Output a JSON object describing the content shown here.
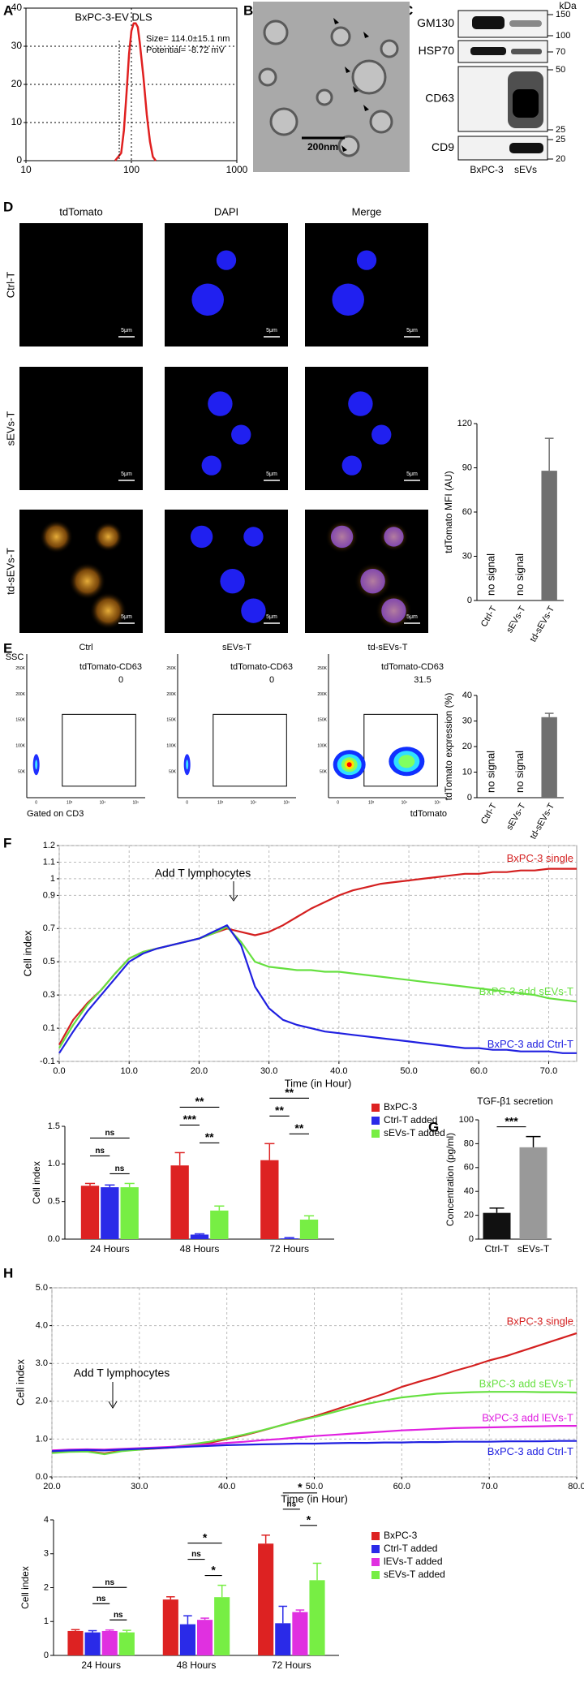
{
  "panel_labels": [
    "A",
    "B",
    "C",
    "D",
    "E",
    "F",
    "G",
    "H"
  ],
  "tem": {
    "scale_bar": "200nm"
  },
  "blot": {
    "unit": "kDa",
    "lanes": [
      "BxPC-3",
      "sEVs"
    ],
    "rows": [
      {
        "label": "GM130",
        "markers": [
          150,
          100
        ]
      },
      {
        "label": "HSP70",
        "markers": [
          70
        ]
      },
      {
        "label": "CD63",
        "markers": [
          50,
          25
        ]
      },
      {
        "label": "CD9",
        "markers": [
          25,
          20
        ]
      }
    ]
  },
  "microscopy": {
    "columns": [
      "tdTomato",
      "DAPI",
      "Merge"
    ],
    "rows": [
      "Ctrl-T",
      "sEVs-T",
      "td-sEVs-T"
    ],
    "scale_bar": "5μm"
  },
  "flow": {
    "y_axis": "SSC",
    "x_axis": "tdTomato",
    "gate_note": "Gated on CD3",
    "gate_name": "tdTomato-CD63",
    "xticks": [
      "0",
      "10³",
      "10⁴",
      "10⁵"
    ],
    "yticks": [
      "50K",
      "100K",
      "150K",
      "200K",
      "250K"
    ],
    "samples": [
      {
        "name": "Ctrl",
        "value": 0
      },
      {
        "name": "sEVs-T",
        "value": 0
      },
      {
        "name": "td-sEVs-T",
        "value": 31.5
      }
    ]
  },
  "chart_data": [
    {
      "type": "line",
      "title": "BxPC-3-EV DLS",
      "annotations": [
        "Size= 114.0±15.1 nm",
        "Potential= -8.72 mV"
      ],
      "x": [
        70,
        80,
        85,
        90,
        95,
        100,
        105,
        110,
        115,
        120,
        130,
        140,
        150,
        160,
        170
      ],
      "series": [
        {
          "color": "#e02020",
          "values": [
            0,
            2,
            8,
            18,
            28,
            34,
            36,
            36,
            35,
            31,
            22,
            12,
            5,
            1,
            0
          ]
        }
      ],
      "xlim": [
        10,
        1000
      ],
      "xticks": [
        10,
        100,
        1000
      ],
      "xscale": "log",
      "ylim": [
        0,
        40
      ],
      "yticks": [
        0,
        10,
        20,
        30,
        40
      ],
      "grid": true
    },
    {
      "type": "bar",
      "ylabel": "tdTomato MFI (AU)",
      "categories": [
        "Ctrl-T",
        "sEVs-T",
        "td-sEVs-T"
      ],
      "values": [
        null,
        null,
        88
      ],
      "errors": [
        null,
        null,
        22
      ],
      "annotations": [
        "no signal",
        "no signal"
      ],
      "color": "#707070",
      "ylim": [
        0,
        120
      ],
      "yticks": [
        0,
        30,
        60,
        90,
        120
      ]
    },
    {
      "type": "bar",
      "ylabel": "tdTomato expression (%)",
      "categories": [
        "Ctrl-T",
        "sEVs-T",
        "td-sEVs-T"
      ],
      "values": [
        null,
        null,
        31.5
      ],
      "errors": [
        null,
        null,
        1.5
      ],
      "annotations": [
        "no signal",
        "no signal"
      ],
      "color": "#707070",
      "ylim": [
        0,
        40
      ],
      "yticks": [
        0,
        10,
        20,
        30,
        40
      ]
    },
    {
      "type": "line",
      "xlabel": "Time (in Hour)",
      "ylabel": "Cell index",
      "annotations": [
        "Add T lymphocytes"
      ],
      "x": [
        0,
        2,
        4,
        6,
        8,
        10,
        12,
        14,
        16,
        18,
        20,
        22,
        24,
        26,
        28,
        30,
        32,
        34,
        36,
        38,
        40,
        42,
        44,
        46,
        48,
        50,
        52,
        54,
        56,
        58,
        60,
        62,
        64,
        66,
        68,
        70,
        72,
        74
      ],
      "series": [
        {
          "name": "BxPC-3 single",
          "color": "#d42020",
          "values": [
            0.0,
            0.15,
            0.25,
            0.33,
            0.43,
            0.52,
            0.56,
            0.58,
            0.6,
            0.62,
            0.64,
            0.67,
            0.7,
            0.68,
            0.66,
            0.68,
            0.72,
            0.77,
            0.82,
            0.86,
            0.9,
            0.93,
            0.95,
            0.97,
            0.98,
            0.99,
            1.0,
            1.01,
            1.02,
            1.03,
            1.03,
            1.04,
            1.04,
            1.05,
            1.05,
            1.06,
            1.06,
            1.06
          ]
        },
        {
          "name": "BxPC-3 add sEVs-T",
          "color": "#66e040",
          "values": [
            -0.02,
            0.12,
            0.24,
            0.33,
            0.43,
            0.52,
            0.56,
            0.58,
            0.6,
            0.62,
            0.64,
            0.67,
            0.71,
            0.62,
            0.5,
            0.47,
            0.46,
            0.45,
            0.45,
            0.44,
            0.44,
            0.43,
            0.42,
            0.41,
            0.4,
            0.39,
            0.38,
            0.37,
            0.36,
            0.35,
            0.34,
            0.33,
            0.32,
            0.31,
            0.3,
            0.28,
            0.27,
            0.26
          ]
        },
        {
          "name": "BxPC-3 add Ctrl-T",
          "color": "#2020e0",
          "values": [
            -0.05,
            0.08,
            0.2,
            0.3,
            0.4,
            0.5,
            0.55,
            0.58,
            0.6,
            0.62,
            0.64,
            0.68,
            0.72,
            0.6,
            0.35,
            0.22,
            0.15,
            0.12,
            0.1,
            0.08,
            0.07,
            0.06,
            0.05,
            0.04,
            0.03,
            0.02,
            0.01,
            0,
            -0.01,
            -0.02,
            -0.02,
            -0.03,
            -0.03,
            -0.04,
            -0.04,
            -0.04,
            -0.05,
            -0.05
          ]
        }
      ],
      "xlim": [
        0,
        74
      ],
      "xticks": [
        {
          "value": 0,
          "label": "0.0"
        },
        {
          "value": 10,
          "label": "10.0"
        },
        {
          "value": 20,
          "label": "20.0"
        },
        {
          "value": 30,
          "label": "30.0"
        },
        {
          "value": 40,
          "label": "40.0"
        },
        {
          "value": 50,
          "label": "50.0"
        },
        {
          "value": 60,
          "label": "60.0"
        },
        {
          "value": 70,
          "label": "70.0"
        }
      ],
      "ylim": [
        -0.1,
        1.2
      ],
      "yticks": [
        -0.1,
        0.1,
        0.3,
        0.5,
        0.7,
        0.9,
        1,
        1.1,
        1.2
      ],
      "grid": true
    },
    {
      "type": "bar",
      "ylabel": "Cell index",
      "categories": [
        "24 Hours",
        "48 Hours",
        "72 Hours"
      ],
      "series": [
        {
          "name": "BxPC-3",
          "color": "#dd2222",
          "values": [
            0.71,
            0.98,
            1.05
          ],
          "errors": [
            0.03,
            0.17,
            0.22
          ]
        },
        {
          "name": "Ctrl-T added",
          "color": "#2a2ae8",
          "values": [
            0.69,
            0.06,
            0.01
          ],
          "errors": [
            0.03,
            0.01,
            0.01
          ]
        },
        {
          "name": "sEVs-T added",
          "color": "#77ee44",
          "values": [
            0.69,
            0.38,
            0.26
          ],
          "errors": [
            0.05,
            0.06,
            0.05
          ]
        }
      ],
      "significance": [
        [
          "ns",
          "ns",
          "ns"
        ],
        [
          "**",
          "***",
          "**"
        ],
        [
          "**",
          "**",
          "**"
        ]
      ],
      "ylim": [
        0,
        1.5
      ],
      "yticks": [
        {
          "value": 0,
          "label": "0.0"
        },
        {
          "value": 0.5,
          "label": "0.5"
        },
        {
          "value": 1,
          "label": "1.0"
        },
        {
          "value": 1.5,
          "label": "1.5"
        }
      ]
    },
    {
      "type": "bar",
      "title": "TGF-β1 secretion",
      "ylabel": "Concentration (pg/ml)",
      "categories": [
        "Ctrl-T",
        "sEVs-T"
      ],
      "values": [
        22,
        77
      ],
      "errors": [
        4,
        9
      ],
      "colors": [
        "#111111",
        "#999999"
      ],
      "significance": [
        [
          "***"
        ]
      ],
      "ylim": [
        0,
        100
      ],
      "yticks": [
        0,
        20,
        40,
        60,
        80,
        100
      ]
    },
    {
      "type": "line",
      "xlabel": "Time (in Hour)",
      "ylabel": "Cell index",
      "annotations": [
        "Add T lymphocytes"
      ],
      "x": [
        20,
        22,
        24,
        26,
        28,
        30,
        32,
        34,
        36,
        38,
        40,
        42,
        44,
        46,
        48,
        50,
        52,
        54,
        56,
        58,
        60,
        62,
        64,
        66,
        68,
        70,
        72,
        74,
        76,
        78,
        80
      ],
      "series": [
        {
          "name": "BxPC-3 single",
          "color": "#d42020",
          "values": [
            0.65,
            0.67,
            0.68,
            0.62,
            0.7,
            0.72,
            0.75,
            0.78,
            0.83,
            0.9,
            1.0,
            1.1,
            1.22,
            1.35,
            1.48,
            1.6,
            1.75,
            1.9,
            2.05,
            2.2,
            2.38,
            2.52,
            2.65,
            2.8,
            2.93,
            3.08,
            3.2,
            3.35,
            3.5,
            3.65,
            3.8
          ]
        },
        {
          "name": "BxPC-3 add sEVs-T",
          "color": "#66e040",
          "values": [
            0.63,
            0.66,
            0.67,
            0.6,
            0.68,
            0.72,
            0.76,
            0.8,
            0.86,
            0.93,
            1.02,
            1.12,
            1.23,
            1.35,
            1.47,
            1.58,
            1.7,
            1.82,
            1.93,
            2.02,
            2.1,
            2.15,
            2.2,
            2.22,
            2.24,
            2.25,
            2.25,
            2.25,
            2.24,
            2.24,
            2.23
          ]
        },
        {
          "name": "BxPC-3 add lEVs-T",
          "color": "#e020e0",
          "values": [
            0.7,
            0.72,
            0.73,
            0.72,
            0.74,
            0.76,
            0.78,
            0.8,
            0.83,
            0.86,
            0.9,
            0.93,
            0.97,
            1.0,
            1.04,
            1.08,
            1.11,
            1.14,
            1.17,
            1.2,
            1.23,
            1.25,
            1.27,
            1.29,
            1.3,
            1.31,
            1.32,
            1.33,
            1.34,
            1.35,
            1.35
          ]
        },
        {
          "name": "BxPC-3 add Ctrl-T",
          "color": "#2020e0",
          "values": [
            0.68,
            0.7,
            0.71,
            0.7,
            0.72,
            0.74,
            0.76,
            0.78,
            0.8,
            0.82,
            0.84,
            0.85,
            0.86,
            0.87,
            0.88,
            0.88,
            0.89,
            0.9,
            0.9,
            0.91,
            0.91,
            0.92,
            0.92,
            0.93,
            0.93,
            0.93,
            0.94,
            0.94,
            0.94,
            0.95,
            0.95
          ]
        }
      ],
      "xlim": [
        20,
        80
      ],
      "xticks": [
        {
          "value": 20,
          "label": "20.0"
        },
        {
          "value": 30,
          "label": "30.0"
        },
        {
          "value": 40,
          "label": "40.0"
        },
        {
          "value": 50,
          "label": "50.0"
        },
        {
          "value": 60,
          "label": "60.0"
        },
        {
          "value": 70,
          "label": "70.0"
        },
        {
          "value": 80,
          "label": "80.0"
        }
      ],
      "ylim": [
        0,
        5
      ],
      "yticks": [
        {
          "value": 0,
          "label": "0.0"
        },
        {
          "value": 1,
          "label": "1.0"
        },
        {
          "value": 2,
          "label": "2.0"
        },
        {
          "value": 3,
          "label": "3.0"
        },
        {
          "value": 4,
          "label": "4.0"
        },
        {
          "value": 5,
          "label": "5.0"
        }
      ],
      "grid": true
    },
    {
      "type": "bar",
      "ylabel": "Cell index",
      "categories": [
        "24 Hours",
        "48 Hours",
        "72 Hours"
      ],
      "series": [
        {
          "name": "BxPC-3",
          "color": "#dd2222",
          "values": [
            0.72,
            1.65,
            3.3
          ],
          "errors": [
            0.04,
            0.08,
            0.25
          ]
        },
        {
          "name": "Ctrl-T added",
          "color": "#2a2ae8",
          "values": [
            0.68,
            0.92,
            0.95
          ],
          "errors": [
            0.05,
            0.25,
            0.5
          ]
        },
        {
          "name": "lEVs-T added",
          "color": "#e030e0",
          "values": [
            0.72,
            1.05,
            1.28
          ],
          "errors": [
            0.03,
            0.05,
            0.06
          ]
        },
        {
          "name": "sEVs-T added",
          "color": "#77ee44",
          "values": [
            0.68,
            1.72,
            2.22
          ],
          "errors": [
            0.06,
            0.35,
            0.5
          ]
        }
      ],
      "significance": [
        [
          "ns",
          "ns",
          "ns"
        ],
        [
          "*",
          "ns",
          "*"
        ],
        [
          "*",
          "ns",
          "*"
        ]
      ],
      "ylim": [
        0,
        4
      ],
      "yticks": [
        0,
        1,
        2,
        3,
        4
      ]
    }
  ]
}
